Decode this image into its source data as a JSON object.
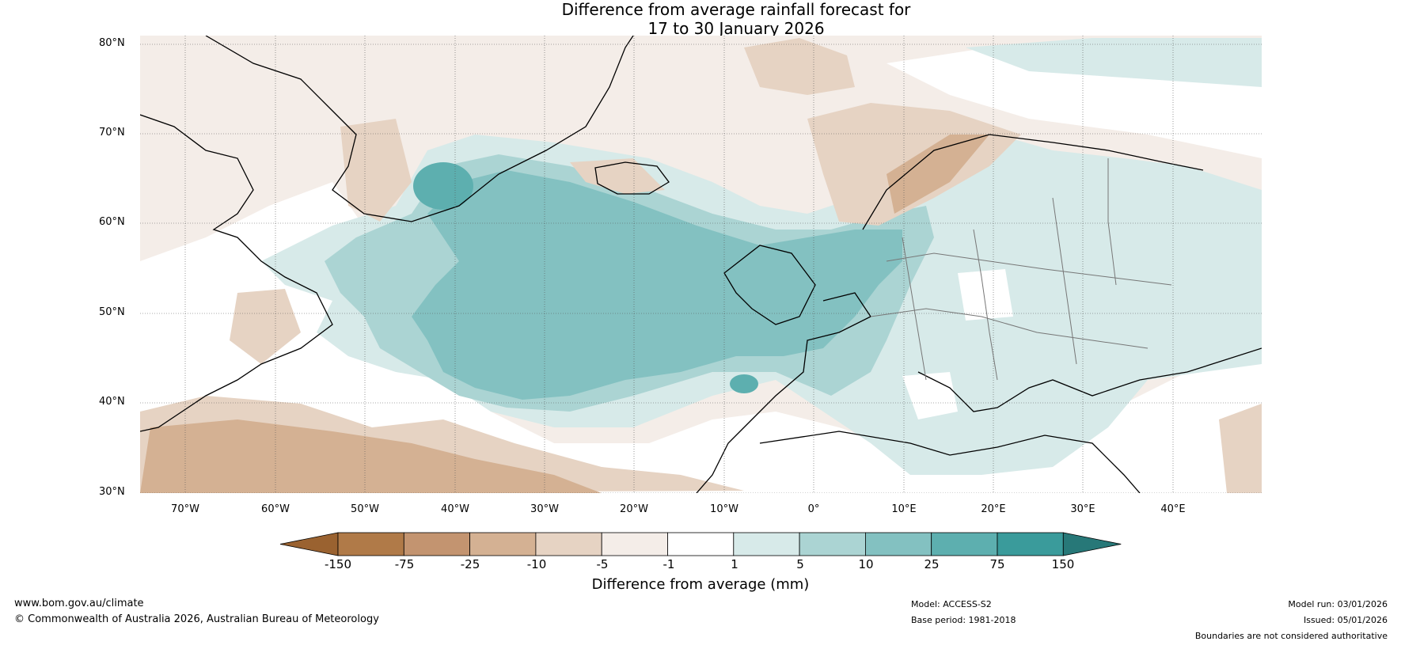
{
  "title": {
    "line1": "Difference from average rainfall forecast for",
    "line2": "17 to 30 January 2026"
  },
  "map": {
    "lat_labels": [
      "80°N",
      "70°N",
      "60°N",
      "50°N",
      "40°N",
      "30°N"
    ],
    "lon_labels": [
      "70°W",
      "60°W",
      "50°W",
      "40°W",
      "30°W",
      "20°W",
      "10°W",
      "0°",
      "10°E",
      "20°E",
      "30°E",
      "40°E"
    ],
    "land_line_color": "#000000",
    "border_line_color": "#777777",
    "grid_color": "#555555"
  },
  "legend": {
    "title": "Difference from average (mm)",
    "ticks": [
      "-150",
      "-75",
      "-25",
      "-10",
      "-5",
      "-1",
      "1",
      "5",
      "10",
      "25",
      "75",
      "150"
    ],
    "colors": [
      "#9a6230",
      "#b07a48",
      "#c39470",
      "#d4b193",
      "#e6d3c3",
      "#f4ede8",
      "#ffffff",
      "#d7eae9",
      "#abd4d3",
      "#83c1c1",
      "#5dafaf",
      "#3a9b9b",
      "#277878"
    ]
  },
  "footer": {
    "website": "www.bom.gov.au/climate",
    "copyright": "© Commonwealth of Australia 2026, Australian Bureau of Meteorology",
    "model": "Model: ACCESS-S2",
    "base_period": "Base period: 1981-2018",
    "model_run": "Model run: 03/01/2026",
    "issued": "Issued: 05/01/2026",
    "disclaimer": "Boundaries are not considered authoritative"
  }
}
